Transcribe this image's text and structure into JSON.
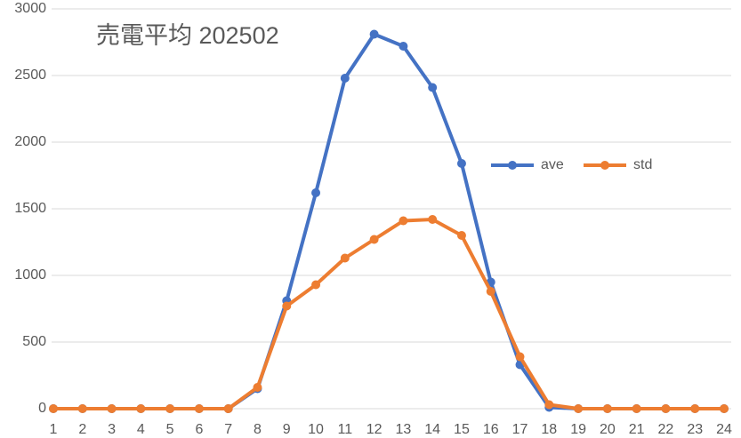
{
  "chart_data": {
    "type": "line",
    "title": "売電平均 202502",
    "categories": [
      "1",
      "2",
      "3",
      "4",
      "5",
      "6",
      "7",
      "8",
      "9",
      "10",
      "11",
      "12",
      "13",
      "14",
      "15",
      "16",
      "17",
      "18",
      "19",
      "20",
      "21",
      "22",
      "23",
      "24"
    ],
    "series": [
      {
        "name": "ave",
        "color": "#4472c4",
        "values": [
          0,
          0,
          0,
          0,
          0,
          0,
          0,
          150,
          810,
          1620,
          2480,
          2810,
          2720,
          2410,
          1840,
          950,
          330,
          10,
          0,
          0,
          0,
          0,
          0,
          0
        ]
      },
      {
        "name": "std",
        "color": "#ed7d31",
        "values": [
          0,
          0,
          0,
          0,
          0,
          0,
          0,
          160,
          770,
          930,
          1130,
          1270,
          1410,
          1420,
          1300,
          880,
          390,
          30,
          0,
          0,
          0,
          0,
          0,
          0
        ]
      }
    ],
    "ylim": [
      0,
      3000
    ],
    "yticks": [
      0,
      500,
      1000,
      1500,
      2000,
      2500,
      3000
    ],
    "grid": true,
    "legend": "right"
  }
}
